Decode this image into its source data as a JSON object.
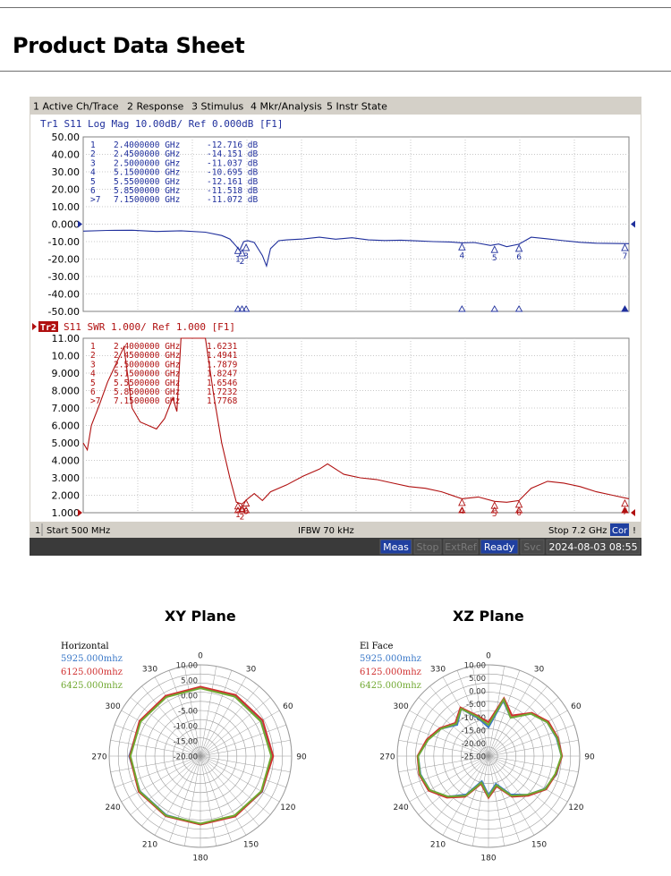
{
  "page": {
    "title": "Product Data Sheet"
  },
  "vna": {
    "menu": [
      "1 Active Ch/Trace",
      "2 Response",
      "3 Stimulus",
      "4 Mkr/Analysis",
      "5 Instr State"
    ],
    "status_left": "1",
    "status_start": "Start 500 MHz",
    "status_ifbw": "IFBW 70 kHz",
    "status_stop": "Stop 7.2 GHz",
    "status_cor": "Cor",
    "status_bang": "!",
    "bottom_buttons": [
      "Meas",
      "Stop",
      "ExtRef",
      "Ready",
      "Svc"
    ],
    "datetime": "2024-08-03 08:55",
    "colors": {
      "tr1": "#1f2f9c",
      "tr2": "#b01010",
      "menu_bg": "#d4d0c8",
      "status_active": "#2040a0"
    }
  },
  "chart_data": [
    {
      "type": "line",
      "title": "Tr1  S11  Log Mag  10.00dB/  Ref  0.000dB  [F1]",
      "trace_label": "Tr1",
      "ylim": [
        -50,
        50
      ],
      "yticks": [
        "50.00",
        "40.00",
        "30.00",
        "20.00",
        "10.00",
        "0.000",
        "-10.00",
        "-20.00",
        "-30.00",
        "-40.00",
        "-50.00"
      ],
      "xlim": [
        0.5,
        7.2
      ],
      "x_unit": "GHz",
      "markers": [
        {
          "id": "1",
          "freq": "2.4000000 GHz",
          "value": "-12.716 dB",
          "x": 2.4,
          "y": -12.716
        },
        {
          "id": "2",
          "freq": "2.4500000 GHz",
          "value": "-14.151 dB",
          "x": 2.45,
          "y": -14.151
        },
        {
          "id": "3",
          "freq": "2.5000000 GHz",
          "value": "-11.037 dB",
          "x": 2.5,
          "y": -11.037
        },
        {
          "id": "4",
          "freq": "5.1500000 GHz",
          "value": "-10.695 dB",
          "x": 5.15,
          "y": -10.695
        },
        {
          "id": "5",
          "freq": "5.5500000 GHz",
          "value": "-12.161 dB",
          "x": 5.55,
          "y": -12.161
        },
        {
          "id": "6",
          "freq": "5.8500000 GHz",
          "value": "-11.518 dB",
          "x": 5.85,
          "y": -11.518
        },
        {
          "id": ">7",
          "freq": "7.1500000 GHz",
          "value": "-11.072 dB",
          "x": 7.15,
          "y": -11.072
        }
      ],
      "series": [
        {
          "x": [
            0.5,
            0.8,
            1.1,
            1.4,
            1.7,
            2.0,
            2.2,
            2.3,
            2.38,
            2.42,
            2.47,
            2.52,
            2.6,
            2.7,
            2.75,
            2.8,
            2.9,
            3.0,
            3.2,
            3.4,
            3.6,
            3.8,
            4.0,
            4.2,
            4.4,
            4.6,
            4.8,
            5.0,
            5.15,
            5.3,
            5.5,
            5.6,
            5.7,
            5.85,
            6.0,
            6.2,
            6.4,
            6.6,
            6.8,
            7.0,
            7.2
          ],
          "y": [
            -4,
            -3.6,
            -3.5,
            -4.2,
            -3.8,
            -4.6,
            -6.5,
            -8.5,
            -12.7,
            -15,
            -10,
            -9.5,
            -10.5,
            -18,
            -24,
            -14,
            -9.5,
            -9,
            -8.5,
            -7.5,
            -8.6,
            -7.8,
            -9,
            -9.4,
            -9.2,
            -9.6,
            -10,
            -10.2,
            -10.7,
            -10.5,
            -12.2,
            -11.4,
            -12.9,
            -11.5,
            -7.5,
            -8.4,
            -9.5,
            -10.4,
            -10.9,
            -11.1,
            -11.2
          ]
        }
      ]
    },
    {
      "type": "line",
      "title": "S11  SWR  1.000/  Ref  1.000  [F1]",
      "trace_label": "Tr2",
      "ylim": [
        1,
        11
      ],
      "yticks": [
        "11.00",
        "10.00",
        "9.000",
        "8.000",
        "7.000",
        "6.000",
        "5.000",
        "4.000",
        "3.000",
        "2.000",
        "1.000"
      ],
      "xlim": [
        0.5,
        7.2
      ],
      "x_unit": "GHz",
      "markers": [
        {
          "id": "1",
          "freq": "2.4000000 GHz",
          "value": "1.6231",
          "x": 2.4,
          "y": 1.6231
        },
        {
          "id": "2",
          "freq": "2.4500000 GHz",
          "value": "1.4941",
          "x": 2.45,
          "y": 1.4941
        },
        {
          "id": "3",
          "freq": "2.5000000 GHz",
          "value": "1.7879",
          "x": 2.5,
          "y": 1.7879
        },
        {
          "id": "4",
          "freq": "5.1500000 GHz",
          "value": "1.8247",
          "x": 5.15,
          "y": 1.8247
        },
        {
          "id": "5",
          "freq": "5.5500000 GHz",
          "value": "1.6546",
          "x": 5.55,
          "y": 1.6546
        },
        {
          "id": "6",
          "freq": "5.8500000 GHz",
          "value": "1.7232",
          "x": 5.85,
          "y": 1.7232
        },
        {
          "id": ">7",
          "freq": "7.1500000 GHz",
          "value": "1.7768",
          "x": 7.15,
          "y": 1.7768
        }
      ],
      "series": [
        {
          "x": [
            0.5,
            0.55,
            0.6,
            0.7,
            0.8,
            0.9,
            1.0,
            1.1,
            1.2,
            1.3,
            1.4,
            1.5,
            1.6,
            1.65,
            1.7,
            1.75,
            1.8,
            1.9,
            2.0,
            2.1,
            2.2,
            2.3,
            2.38,
            2.45,
            2.52,
            2.6,
            2.7,
            2.8,
            3.0,
            3.2,
            3.4,
            3.5,
            3.7,
            3.9,
            4.1,
            4.3,
            4.5,
            4.7,
            4.9,
            5.15,
            5.35,
            5.55,
            5.7,
            5.85,
            6.0,
            6.2,
            6.4,
            6.6,
            6.8,
            7.0,
            7.2
          ],
          "y": [
            5.0,
            4.6,
            6.0,
            7.2,
            8.5,
            9.5,
            10.5,
            7.0,
            6.2,
            6.0,
            5.8,
            6.4,
            7.6,
            6.8,
            11,
            11,
            11,
            11,
            11,
            7.8,
            5.0,
            3.0,
            1.6,
            1.5,
            1.8,
            2.1,
            1.7,
            2.2,
            2.6,
            3.1,
            3.5,
            3.8,
            3.2,
            3.0,
            2.9,
            2.7,
            2.5,
            2.4,
            2.2,
            1.8,
            1.9,
            1.65,
            1.6,
            1.7,
            2.4,
            2.8,
            2.7,
            2.5,
            2.2,
            2.0,
            1.8
          ]
        }
      ]
    },
    {
      "type": "polar",
      "title": "XY Plane",
      "legend_title": "Horizontal",
      "angle_labels": [
        "0",
        "30",
        "60",
        "90",
        "120",
        "150",
        "180",
        "210",
        "240",
        "270",
        "300",
        "330"
      ],
      "r_labels": [
        "10.00",
        "5.00",
        "0.00",
        "-5.00",
        "-10.00",
        "-15.00",
        "-20.00"
      ],
      "rlim": [
        -20,
        10
      ],
      "series": [
        {
          "name": "5925.000mhz",
          "color": "#3a78c8",
          "angles": [
            0,
            30,
            60,
            90,
            120,
            150,
            180,
            210,
            240,
            270,
            300,
            330
          ],
          "values": [
            2.5,
            2.8,
            3.0,
            3.6,
            3.4,
            2.7,
            2.4,
            2.4,
            3.0,
            3.4,
            2.8,
            2.5
          ]
        },
        {
          "name": "6125.000mhz",
          "color": "#d03030",
          "angles": [
            0,
            30,
            60,
            90,
            120,
            150,
            180,
            210,
            240,
            270,
            300,
            330
          ],
          "values": [
            2.8,
            3.2,
            3.6,
            3.9,
            3.3,
            2.9,
            2.5,
            2.8,
            3.4,
            3.2,
            3.1,
            2.9
          ]
        },
        {
          "name": "6425.000mhz",
          "color": "#70a830",
          "angles": [
            0,
            30,
            60,
            90,
            120,
            150,
            180,
            210,
            240,
            270,
            300,
            330
          ],
          "values": [
            2.3,
            2.6,
            2.9,
            3.3,
            3.1,
            2.5,
            2.2,
            2.6,
            3.1,
            3.0,
            2.7,
            2.4
          ]
        }
      ]
    },
    {
      "type": "polar",
      "title": "XZ Plane",
      "legend_title": "El Face",
      "angle_labels": [
        "0",
        "30",
        "60",
        "90",
        "120",
        "150",
        "180",
        "210",
        "240",
        "270",
        "300",
        "330"
      ],
      "r_labels": [
        "10.00",
        "5.00",
        "0.00",
        "-5.00",
        "-10.00",
        "-15.00",
        "-20.00",
        "-25.00"
      ],
      "rlim": [
        -25,
        10
      ],
      "series": [
        {
          "name": "5925.000mhz",
          "color": "#3a78c8",
          "angles": [
            0,
            15,
            30,
            45,
            60,
            75,
            90,
            105,
            120,
            135,
            150,
            165,
            180,
            195,
            210,
            225,
            240,
            255,
            270,
            285,
            300,
            315,
            330,
            345
          ],
          "values": [
            -14,
            -3,
            -8,
            -2,
            1,
            2,
            3,
            2,
            0,
            -4,
            -8,
            -14,
            -10,
            -15,
            -8,
            -3,
            1,
            2,
            2,
            -1,
            -4,
            -8,
            -4,
            -10
          ]
        },
        {
          "name": "6125.000mhz",
          "color": "#d03030",
          "angles": [
            0,
            15,
            30,
            45,
            60,
            75,
            90,
            105,
            120,
            135,
            150,
            165,
            180,
            195,
            210,
            225,
            240,
            255,
            270,
            285,
            300,
            315,
            330,
            345
          ],
          "values": [
            -12,
            -2,
            -7,
            -1.5,
            1.5,
            2.5,
            3.2,
            1.8,
            0.5,
            -3.5,
            -7,
            -13,
            -9,
            -14,
            -7,
            -2.5,
            1.5,
            2.5,
            2.2,
            -0.5,
            -3.5,
            -7,
            -3.5,
            -9
          ]
        },
        {
          "name": "6425.000mhz",
          "color": "#70a830",
          "angles": [
            0,
            15,
            30,
            45,
            60,
            75,
            90,
            105,
            120,
            135,
            150,
            165,
            180,
            195,
            210,
            225,
            240,
            255,
            270,
            285,
            300,
            315,
            330,
            345
          ],
          "values": [
            -13,
            -2.5,
            -8,
            -2,
            1,
            2.2,
            3,
            1.5,
            0.2,
            -4,
            -7.5,
            -13.5,
            -9.5,
            -14.5,
            -7.5,
            -3,
            1,
            2.2,
            2,
            -1,
            -4,
            -7.5,
            -4,
            -9.5
          ]
        }
      ]
    }
  ]
}
